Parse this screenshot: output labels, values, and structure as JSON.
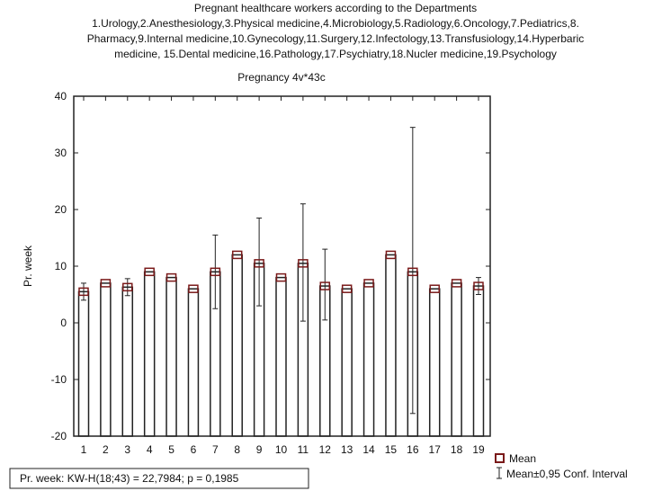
{
  "chart_data": {
    "type": "bar",
    "title": "Pregnant healthcare workers  according to the Departments",
    "subtitle_lines": [
      "1.Urology,2.Anesthesiology,3.Physical medicine,4.Microbiology,5.Radiology,6.Oncology,7.Pediatrics,8.",
      "Pharmacy,9.Internal medicine,10.Gynecology,11.Surgery,12.Infectology,13.Transfusiology,14.Hyperbaric",
      "medicine, 15.Dental medicine,16.Pathology,17.Psychiatry,18.Nucler medicine,19.Psychology"
    ],
    "plot_title": "Pregnancy 4v*43c",
    "xlabel": "",
    "ylabel": "Pr. week",
    "ylim": [
      -20,
      40
    ],
    "yticks": [
      -20,
      -10,
      0,
      10,
      20,
      30,
      40
    ],
    "categories": [
      "1",
      "2",
      "3",
      "4",
      "5",
      "6",
      "7",
      "8",
      "9",
      "10",
      "11",
      "12",
      "13",
      "14",
      "15",
      "16",
      "17",
      "18",
      "19"
    ],
    "values": [
      5.5,
      7,
      6.3,
      9,
      8,
      6,
      9,
      12,
      10.5,
      8,
      10.5,
      6.5,
      6,
      7,
      12,
      9,
      6,
      7,
      6.5
    ],
    "ci_low": [
      4,
      7,
      4.8,
      9,
      8,
      6,
      2.5,
      12,
      3,
      8,
      0.3,
      0.5,
      6,
      7,
      12,
      -16,
      6,
      7,
      5
    ],
    "ci_high": [
      7,
      7,
      7.8,
      9,
      8,
      6,
      15.5,
      12,
      18.5,
      8,
      21,
      13,
      6,
      7,
      12,
      34.5,
      6,
      7,
      8
    ],
    "legend": {
      "mean": "Mean",
      "ci": "Mean±0,95 Conf. Interval",
      "placement": "bottom-right"
    },
    "annotation": "Pr. week:  KW-H(18;43) = 22,7984; p = 0,1985",
    "colors": {
      "mean_marker": "#7a1a1a",
      "bar": "#ffffff",
      "stroke": "#222222"
    }
  }
}
